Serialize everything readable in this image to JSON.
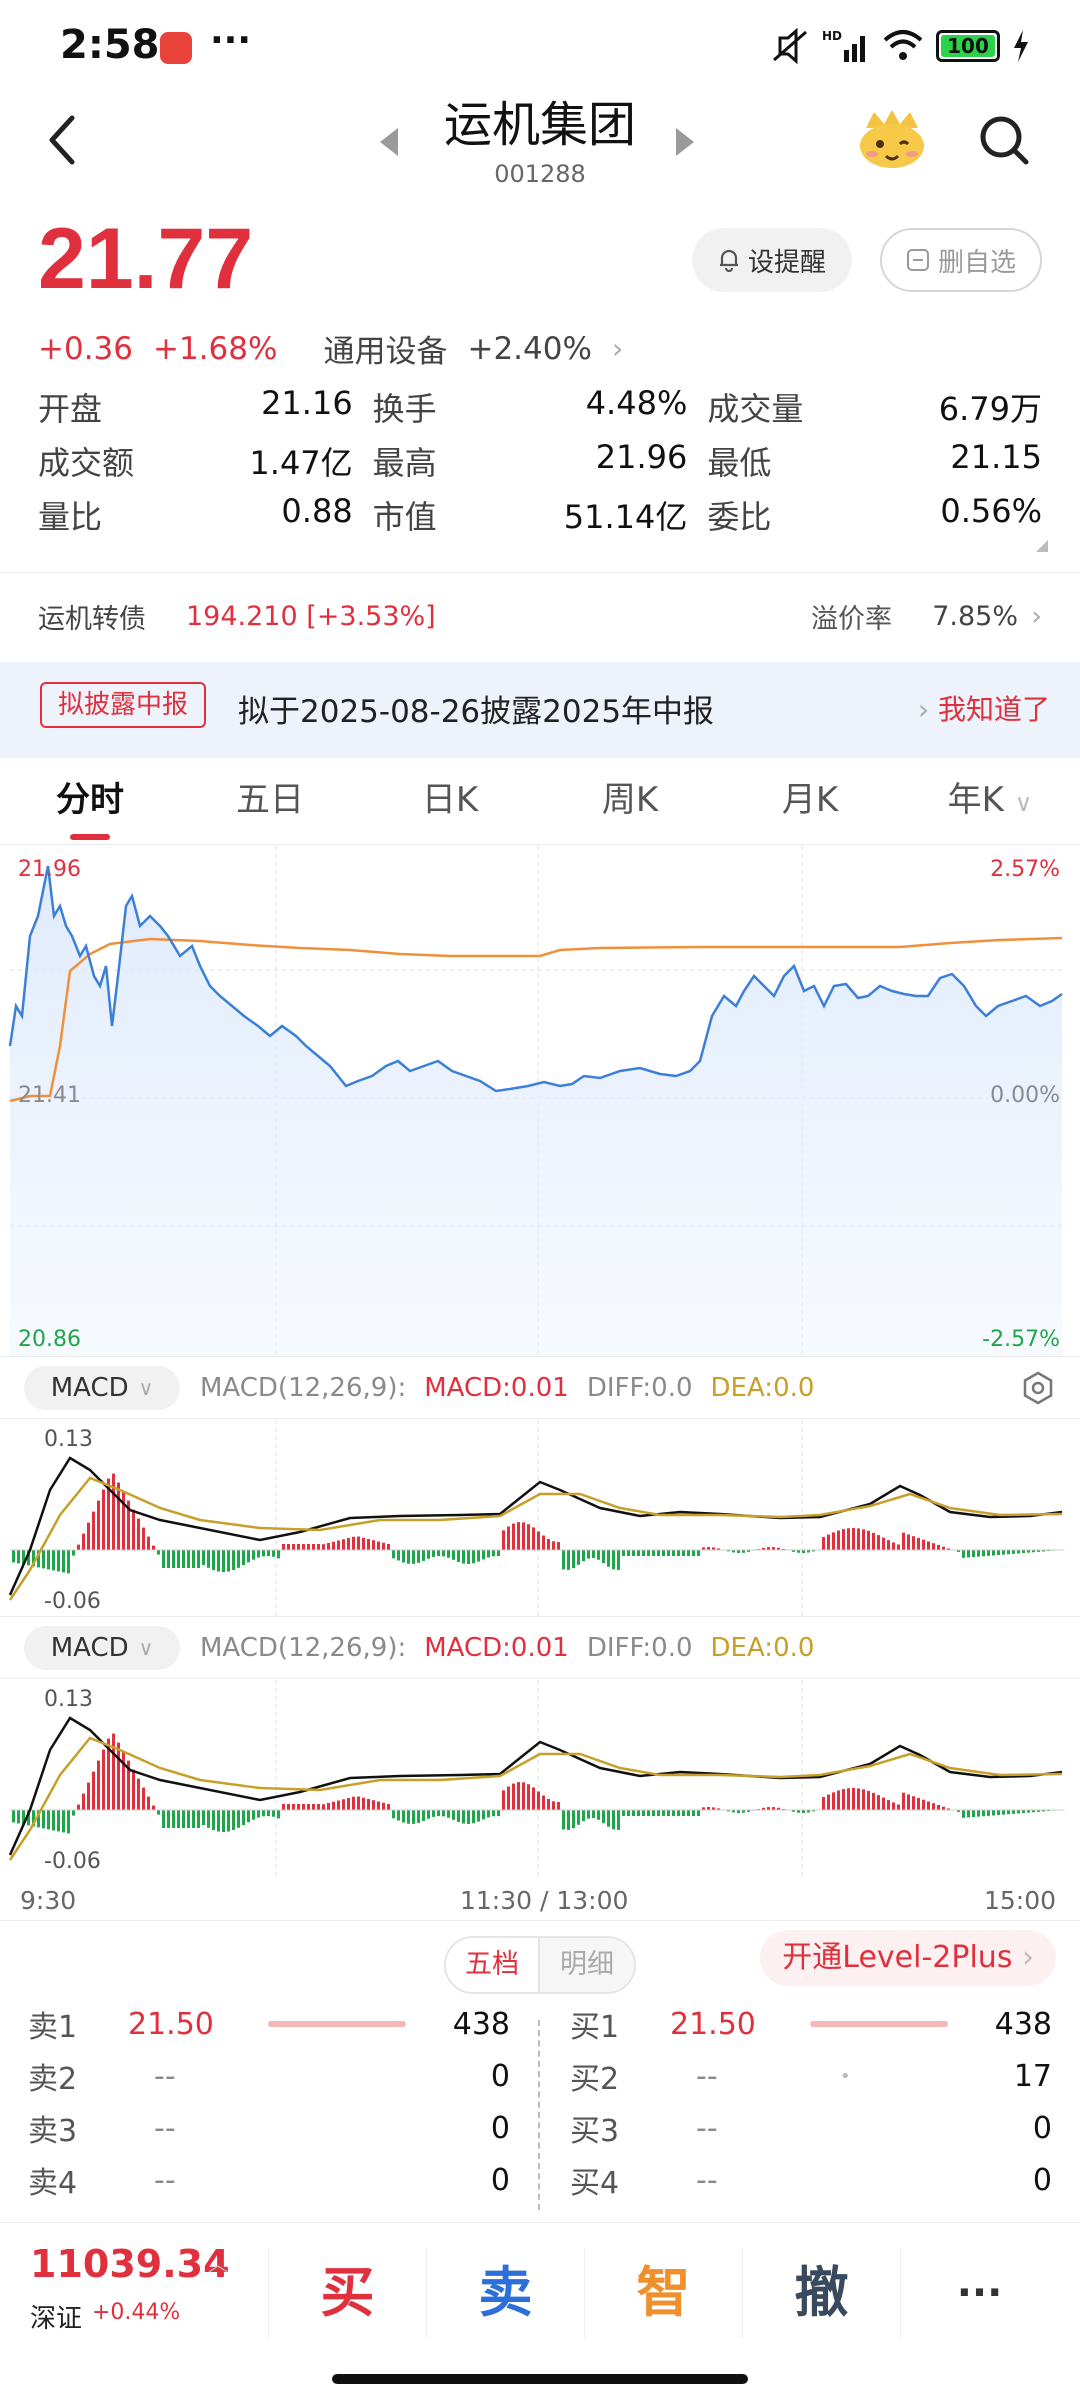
{
  "status": {
    "time": "2:58",
    "dots": "···",
    "battery": "100"
  },
  "header": {
    "name": "运机集团",
    "code": "001288"
  },
  "price": {
    "last": "21.77",
    "change": "+0.36",
    "change_pct": "+1.68%",
    "industry": "通用设备",
    "industry_pct": "+2.40%"
  },
  "buttons": {
    "alert": "设提醒",
    "watch": "删自选"
  },
  "quote": [
    [
      {
        "label": "开盘",
        "value": "21.16",
        "color": "green"
      },
      {
        "label": "换手",
        "value": "4.48%",
        "color": "black"
      },
      {
        "label": "成交量",
        "value": "6.79万",
        "color": "black"
      }
    ],
    [
      {
        "label": "成交额",
        "value": "1.47亿",
        "color": "black"
      },
      {
        "label": "最高",
        "value": "21.96",
        "color": "red"
      },
      {
        "label": "最低",
        "value": "21.15",
        "color": "green"
      }
    ],
    [
      {
        "label": "量比",
        "value": "0.88",
        "color": "black"
      },
      {
        "label": "市值",
        "value": "51.14亿",
        "color": "black"
      },
      {
        "label": "委比",
        "value": "0.56%",
        "color": "red"
      }
    ]
  ],
  "bond": {
    "label": "运机转债",
    "value": "194.210  [+3.53%]",
    "premium_label": "溢价率",
    "premium_value": "7.85%"
  },
  "banner": {
    "tag": "拟披露中报",
    "text": "拟于2025-08-26披露2025年中报",
    "ack": "我知道了"
  },
  "tabs": [
    "分时",
    "五日",
    "日K",
    "周K",
    "月K",
    "年K"
  ],
  "chart": {
    "price_high": "21.96",
    "price_mid": "21.41",
    "price_low": "20.86",
    "pct_high": "2.57%",
    "pct_mid": "0.00%",
    "pct_low": "-2.57%"
  },
  "macd": {
    "pill": "MACD",
    "params": "MACD(12,26,9):",
    "macd": "MACD:0.01",
    "diff": "DIFF:0.0",
    "dea": "DEA:0.0",
    "max": "0.13",
    "min": "-0.06"
  },
  "time_axis": {
    "start": "9:30",
    "mid": "11:30 / 13:00",
    "end": "15:00"
  },
  "orderbook": {
    "seg_a": "五档",
    "seg_b": "明细",
    "level2": "开通Level-2Plus",
    "sell": [
      {
        "label": "卖1",
        "price": "21.50",
        "vol": "438"
      },
      {
        "label": "卖2",
        "price": "--",
        "vol": "0"
      },
      {
        "label": "卖3",
        "price": "--",
        "vol": "0"
      },
      {
        "label": "卖4",
        "price": "--",
        "vol": "0"
      }
    ],
    "buy": [
      {
        "label": "买1",
        "price": "21.50",
        "vol": "438"
      },
      {
        "label": "买2",
        "price": "--",
        "vol": "17"
      },
      {
        "label": "买3",
        "price": "--",
        "vol": "0"
      },
      {
        "label": "买4",
        "price": "--",
        "vol": "0"
      }
    ]
  },
  "bottom": {
    "index_value": "11039.34",
    "index_label": "深证",
    "index_change": "+0.44%",
    "buy": "买",
    "sell": "卖",
    "smart": "智",
    "cancel": "撤",
    "more": "···"
  },
  "colors": {
    "up": "#e0303e",
    "down": "#20a64a",
    "price_line": "#3b7fd9",
    "avg_line": "#f0903c",
    "dea_line": "#c6a02a"
  }
}
